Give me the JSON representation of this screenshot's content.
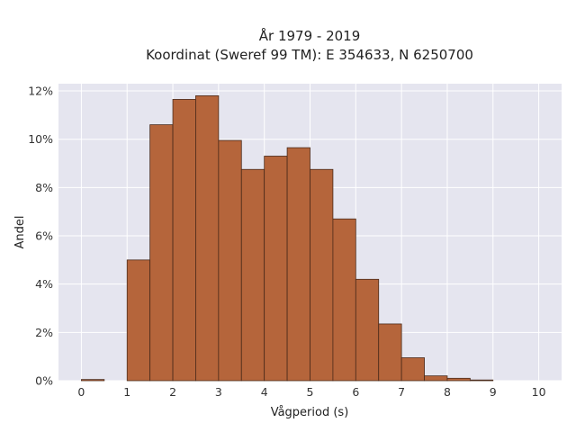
{
  "chart_data": {
    "type": "bar",
    "title_line1": "År 1979 - 2019",
    "title_line2": "Koordinat (Sweref 99 TM): E 354633, N 6250700",
    "xlabel": "Vågperiod (s)",
    "ylabel": "Andel",
    "xlim": [
      -0.5,
      10.5
    ],
    "ylim": [
      0,
      12.3
    ],
    "x_ticks": [
      0,
      1,
      2,
      3,
      4,
      5,
      6,
      7,
      8,
      9,
      10
    ],
    "x_tick_labels": [
      "0",
      "1",
      "2",
      "3",
      "4",
      "5",
      "6",
      "7",
      "8",
      "9",
      "10"
    ],
    "y_ticks": [
      0,
      2,
      4,
      6,
      8,
      10,
      12
    ],
    "y_tick_labels": [
      "0%",
      "2%",
      "4%",
      "6%",
      "8%",
      "10%",
      "12%"
    ],
    "bin_width": 0.5,
    "bins": [
      {
        "start": 0.0,
        "value": 0.05
      },
      {
        "start": 0.5,
        "value": 0.0
      },
      {
        "start": 1.0,
        "value": 5.0
      },
      {
        "start": 1.5,
        "value": 10.6
      },
      {
        "start": 2.0,
        "value": 11.65
      },
      {
        "start": 2.5,
        "value": 11.8
      },
      {
        "start": 3.0,
        "value": 9.95
      },
      {
        "start": 3.5,
        "value": 8.75
      },
      {
        "start": 4.0,
        "value": 9.3
      },
      {
        "start": 4.5,
        "value": 9.65
      },
      {
        "start": 5.0,
        "value": 8.75
      },
      {
        "start": 5.5,
        "value": 6.7
      },
      {
        "start": 6.0,
        "value": 4.2
      },
      {
        "start": 6.5,
        "value": 2.35
      },
      {
        "start": 7.0,
        "value": 0.95
      },
      {
        "start": 7.5,
        "value": 0.2
      },
      {
        "start": 8.0,
        "value": 0.1
      },
      {
        "start": 8.5,
        "value": 0.03
      }
    ],
    "grid": true,
    "legend": "none",
    "colors": {
      "bar_fill": "#b5653b",
      "bar_stroke": "#4a2a1a",
      "plot_background": "#e5e5ef",
      "grid": "#ffffff"
    }
  }
}
